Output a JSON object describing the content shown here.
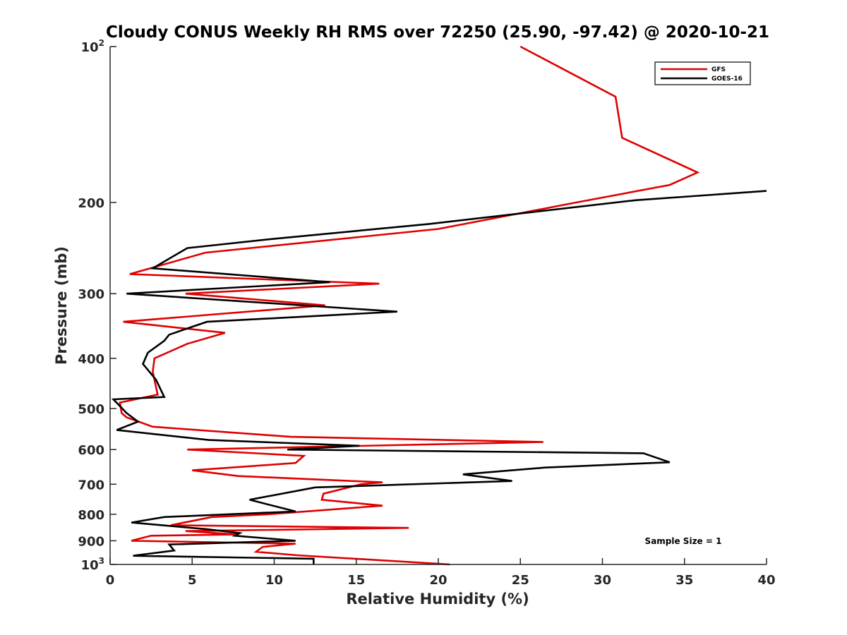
{
  "chart_data": {
    "type": "line",
    "title": "Cloudy CONUS Weekly RH RMS over 72250 (25.90, -97.42) @ 2020-10-21",
    "xlabel": "Relative Humidity (%)",
    "ylabel": "Pressure (mb)",
    "xlim": [
      0,
      40
    ],
    "ylim": [
      100,
      1000
    ],
    "y_scale": "log",
    "y_reversed": true,
    "grid": false,
    "legend_position": "top-right",
    "annotation": "Sample Size = 1",
    "x_ticks": [
      "0",
      "5",
      "10",
      "15",
      "20",
      "25",
      "30",
      "35",
      "40"
    ],
    "y_ticks": [
      {
        "value": 100,
        "base": "10",
        "exp": "2"
      },
      {
        "value": 200,
        "label": "200"
      },
      {
        "value": 300,
        "label": "300"
      },
      {
        "value": 400,
        "label": "400"
      },
      {
        "value": 500,
        "label": "500"
      },
      {
        "value": 600,
        "label": "600"
      },
      {
        "value": 700,
        "label": "700"
      },
      {
        "value": 800,
        "label": "800"
      },
      {
        "value": 900,
        "label": "900"
      },
      {
        "value": 1000,
        "base": "10",
        "exp": "3"
      }
    ],
    "series": [
      {
        "name": "GFS",
        "color": "#e00000",
        "points": [
          [
            25.0,
            100
          ],
          [
            30.8,
            125
          ],
          [
            31.2,
            150
          ],
          [
            35.8,
            175
          ],
          [
            34.1,
            185
          ],
          [
            28.4,
            200
          ],
          [
            20.0,
            225
          ],
          [
            5.8,
            250
          ],
          [
            1.2,
            275
          ],
          [
            16.4,
            287
          ],
          [
            4.6,
            300
          ],
          [
            13.1,
            316
          ],
          [
            0.8,
            340
          ],
          [
            7.0,
            357
          ],
          [
            4.7,
            375
          ],
          [
            2.7,
            400
          ],
          [
            2.6,
            425
          ],
          [
            2.9,
            470
          ],
          [
            0.6,
            487
          ],
          [
            0.7,
            510
          ],
          [
            1.0,
            520
          ],
          [
            2.6,
            542
          ],
          [
            11.0,
            567
          ],
          [
            26.4,
            580
          ],
          [
            4.7,
            600
          ],
          [
            11.8,
            617
          ],
          [
            11.3,
            637
          ],
          [
            5.0,
            658
          ],
          [
            7.8,
            675
          ],
          [
            16.6,
            694
          ],
          [
            15.3,
            700
          ],
          [
            13.0,
            730
          ],
          [
            12.9,
            750
          ],
          [
            16.6,
            770
          ],
          [
            9.6,
            800
          ],
          [
            6.2,
            810
          ],
          [
            3.7,
            840
          ],
          [
            18.2,
            850
          ],
          [
            4.6,
            862
          ],
          [
            7.7,
            875
          ],
          [
            2.5,
            880
          ],
          [
            1.3,
            900
          ],
          [
            11.3,
            912
          ],
          [
            9.3,
            925
          ],
          [
            8.9,
            945
          ],
          [
            11.4,
            960
          ],
          [
            20.7,
            1000
          ]
        ]
      },
      {
        "name": "GOES-16",
        "color": "#000000",
        "points": [
          [
            40.0,
            190
          ],
          [
            32.0,
            198
          ],
          [
            19.5,
            220
          ],
          [
            10.0,
            235
          ],
          [
            4.7,
            245
          ],
          [
            2.6,
            268
          ],
          [
            13.4,
            285
          ],
          [
            1.0,
            300
          ],
          [
            17.5,
            325
          ],
          [
            5.9,
            340
          ],
          [
            3.6,
            360
          ],
          [
            3.3,
            370
          ],
          [
            2.3,
            390
          ],
          [
            2.0,
            410
          ],
          [
            2.8,
            440
          ],
          [
            3.3,
            475
          ],
          [
            0.2,
            480
          ],
          [
            1.0,
            510
          ],
          [
            1.7,
            530
          ],
          [
            0.4,
            550
          ],
          [
            6.0,
            575
          ],
          [
            15.2,
            590
          ],
          [
            10.8,
            600
          ],
          [
            32.5,
            610
          ],
          [
            34.1,
            635
          ],
          [
            26.5,
            650
          ],
          [
            21.5,
            670
          ],
          [
            24.5,
            690
          ],
          [
            12.5,
            710
          ],
          [
            8.5,
            750
          ],
          [
            11.3,
            790
          ],
          [
            3.3,
            810
          ],
          [
            1.3,
            830
          ],
          [
            5.9,
            855
          ],
          [
            7.9,
            870
          ],
          [
            7.6,
            880
          ],
          [
            11.3,
            900
          ],
          [
            3.6,
            915
          ],
          [
            3.9,
            940
          ],
          [
            1.4,
            962
          ],
          [
            12.4,
            975
          ],
          [
            12.4,
            1000
          ]
        ]
      }
    ]
  }
}
